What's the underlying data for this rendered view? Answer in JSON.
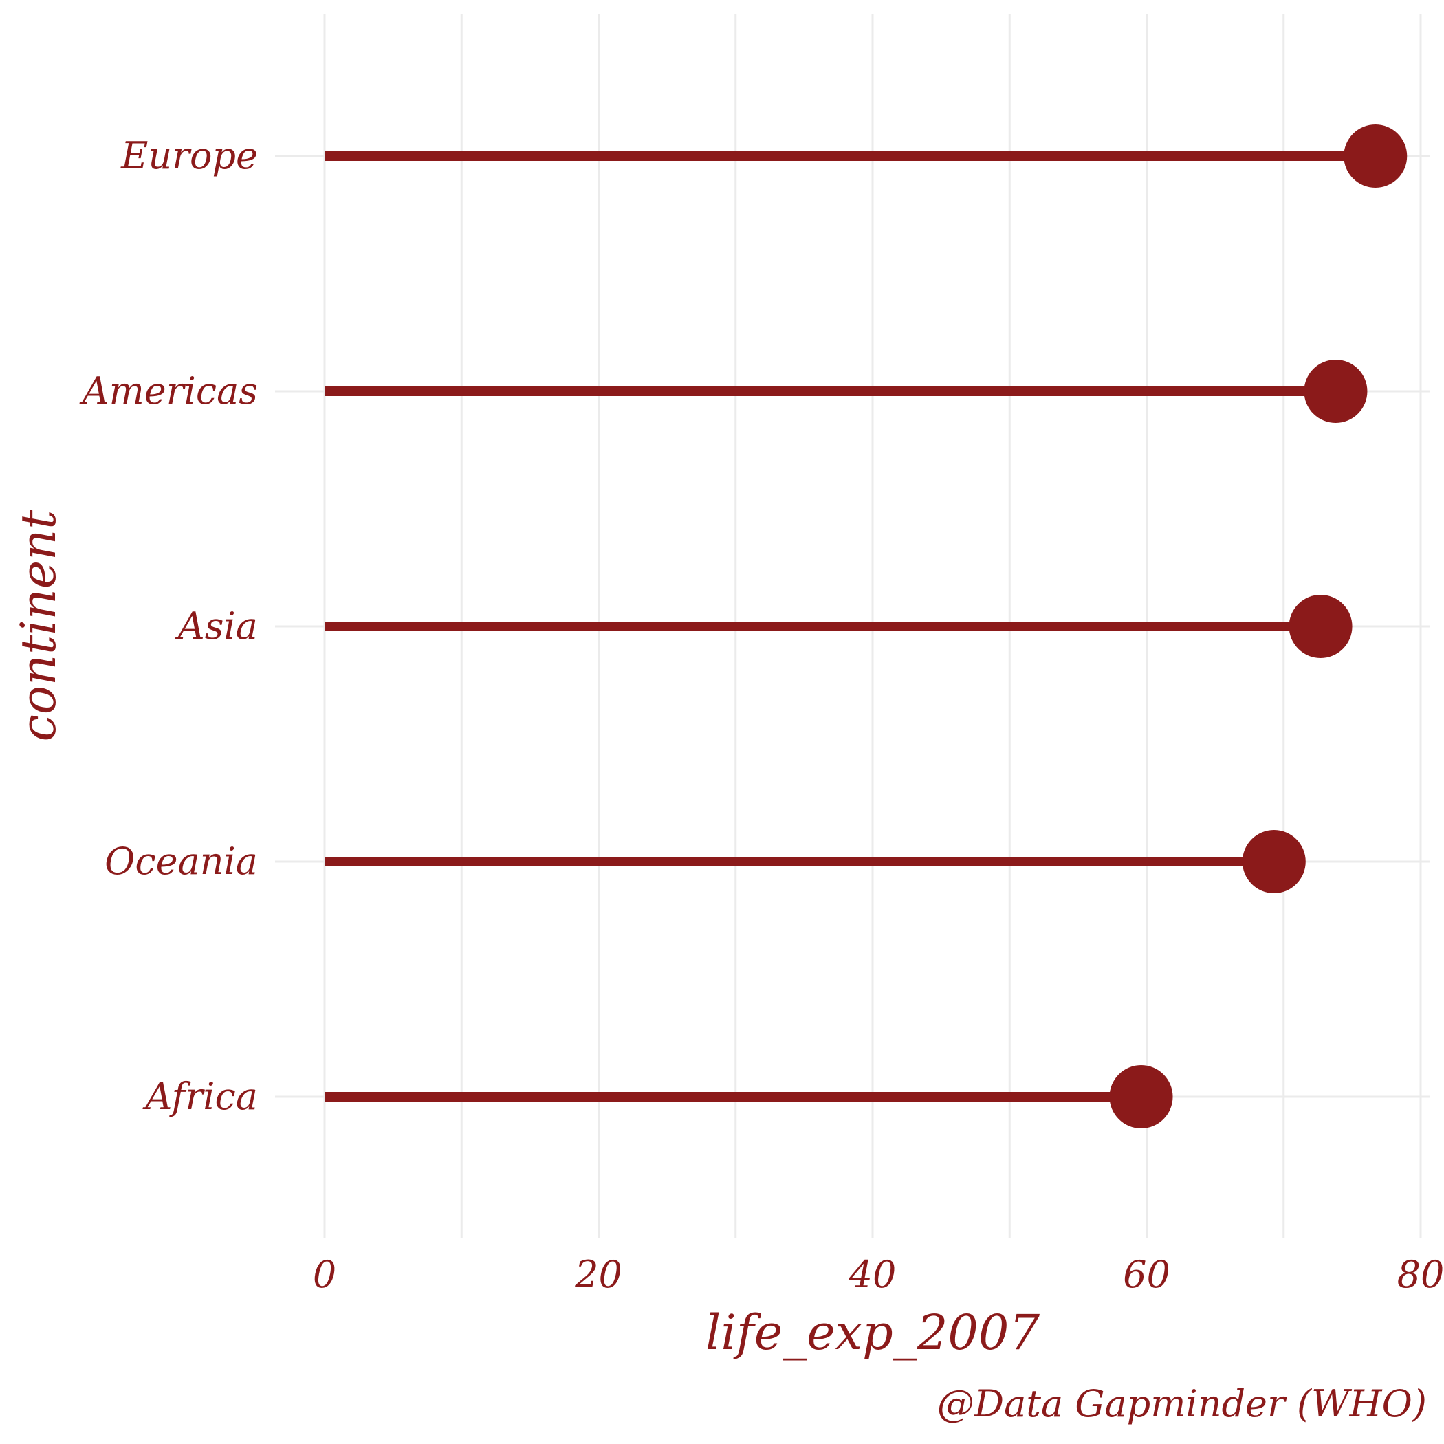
{
  "chart_data": {
    "type": "lollipop",
    "categories": [
      "Africa",
      "Oceania",
      "Asia",
      "Americas",
      "Europe"
    ],
    "values": [
      59.6,
      69.3,
      72.7,
      73.8,
      76.7
    ],
    "xlabel": "life_exp_2007",
    "ylabel": "continent",
    "caption": "@Data Gapminder (WHO)",
    "x_ticks": [
      0,
      20,
      40,
      60,
      80
    ],
    "xlim": [
      0,
      80
    ],
    "grid": true,
    "legend": "none",
    "color": "#8b1a1a"
  }
}
